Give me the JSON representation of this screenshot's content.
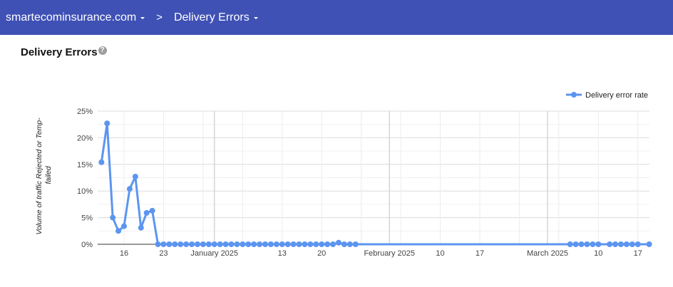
{
  "header": {
    "domain": "smartecominsurance.com",
    "separator": ">",
    "page": "Delivery Errors",
    "background": "#3f51b5"
  },
  "section": {
    "title": "Delivery Errors",
    "help_icon": "?"
  },
  "chart_data": {
    "type": "line",
    "title": "",
    "xlabel": "",
    "ylabel": "Volume of traffic Rejected or Temp-failed",
    "ylim": [
      0,
      25
    ],
    "y_ticks": [
      "0%",
      "5%",
      "10%",
      "15%",
      "20%",
      "25%"
    ],
    "x_tick_labels": [
      {
        "date": "2024-12-16",
        "label": "16"
      },
      {
        "date": "2024-12-23",
        "label": "23"
      },
      {
        "date": "2025-01-01",
        "label": "January 2025"
      },
      {
        "date": "2025-01-13",
        "label": "13"
      },
      {
        "date": "2025-01-20",
        "label": "20"
      },
      {
        "date": "2025-02-01",
        "label": "February 2025"
      },
      {
        "date": "2025-02-10",
        "label": "10"
      },
      {
        "date": "2025-02-17",
        "label": "17"
      },
      {
        "date": "2025-03-01",
        "label": "March 2025"
      },
      {
        "date": "2025-03-10",
        "label": "10"
      },
      {
        "date": "2025-03-17",
        "label": "17"
      }
    ],
    "grid": true,
    "legend": "top-right",
    "color": "#5c95f0",
    "series": [
      {
        "name": "Delivery error rate",
        "points": [
          [
            "2024-12-12",
            15.4
          ],
          [
            "2024-12-13",
            22.7
          ],
          [
            "2024-12-14",
            5.0
          ],
          [
            "2024-12-15",
            2.5
          ],
          [
            "2024-12-16",
            3.4
          ],
          [
            "2024-12-17",
            10.4
          ],
          [
            "2024-12-18",
            12.7
          ],
          [
            "2024-12-19",
            3.1
          ],
          [
            "2024-12-20",
            5.9
          ],
          [
            "2024-12-21",
            6.3
          ],
          [
            "2024-12-22",
            0
          ],
          [
            "2024-12-23",
            0
          ],
          [
            "2024-12-24",
            0
          ],
          [
            "2024-12-25",
            0
          ],
          [
            "2024-12-26",
            0
          ],
          [
            "2024-12-27",
            0
          ],
          [
            "2024-12-28",
            0
          ],
          [
            "2024-12-29",
            0
          ],
          [
            "2024-12-30",
            0
          ],
          [
            "2024-12-31",
            0
          ],
          [
            "2025-01-01",
            0
          ],
          [
            "2025-01-02",
            0
          ],
          [
            "2025-01-03",
            0
          ],
          [
            "2025-01-04",
            0
          ],
          [
            "2025-01-05",
            0
          ],
          [
            "2025-01-06",
            0
          ],
          [
            "2025-01-07",
            0
          ],
          [
            "2025-01-08",
            0
          ],
          [
            "2025-01-09",
            0
          ],
          [
            "2025-01-10",
            0
          ],
          [
            "2025-01-11",
            0
          ],
          [
            "2025-01-12",
            0
          ],
          [
            "2025-01-13",
            0
          ],
          [
            "2025-01-14",
            0
          ],
          [
            "2025-01-15",
            0
          ],
          [
            "2025-01-16",
            0
          ],
          [
            "2025-01-17",
            0
          ],
          [
            "2025-01-18",
            0
          ],
          [
            "2025-01-19",
            0
          ],
          [
            "2025-01-20",
            0
          ],
          [
            "2025-01-21",
            0
          ],
          [
            "2025-01-22",
            0
          ],
          [
            "2025-01-23",
            0.3
          ],
          [
            "2025-01-24",
            0
          ],
          [
            "2025-01-25",
            0
          ],
          [
            "2025-01-26",
            0
          ],
          [
            "2025-03-05",
            0
          ],
          [
            "2025-03-06",
            0
          ],
          [
            "2025-03-07",
            0
          ],
          [
            "2025-03-08",
            0
          ],
          [
            "2025-03-09",
            0
          ],
          [
            "2025-03-10",
            0
          ],
          [
            "2025-03-12",
            0
          ],
          [
            "2025-03-13",
            0
          ],
          [
            "2025-03-14",
            0
          ],
          [
            "2025-03-15",
            0
          ],
          [
            "2025-03-16",
            0
          ],
          [
            "2025-03-17",
            0
          ],
          [
            "2025-03-19",
            0
          ]
        ]
      }
    ]
  }
}
